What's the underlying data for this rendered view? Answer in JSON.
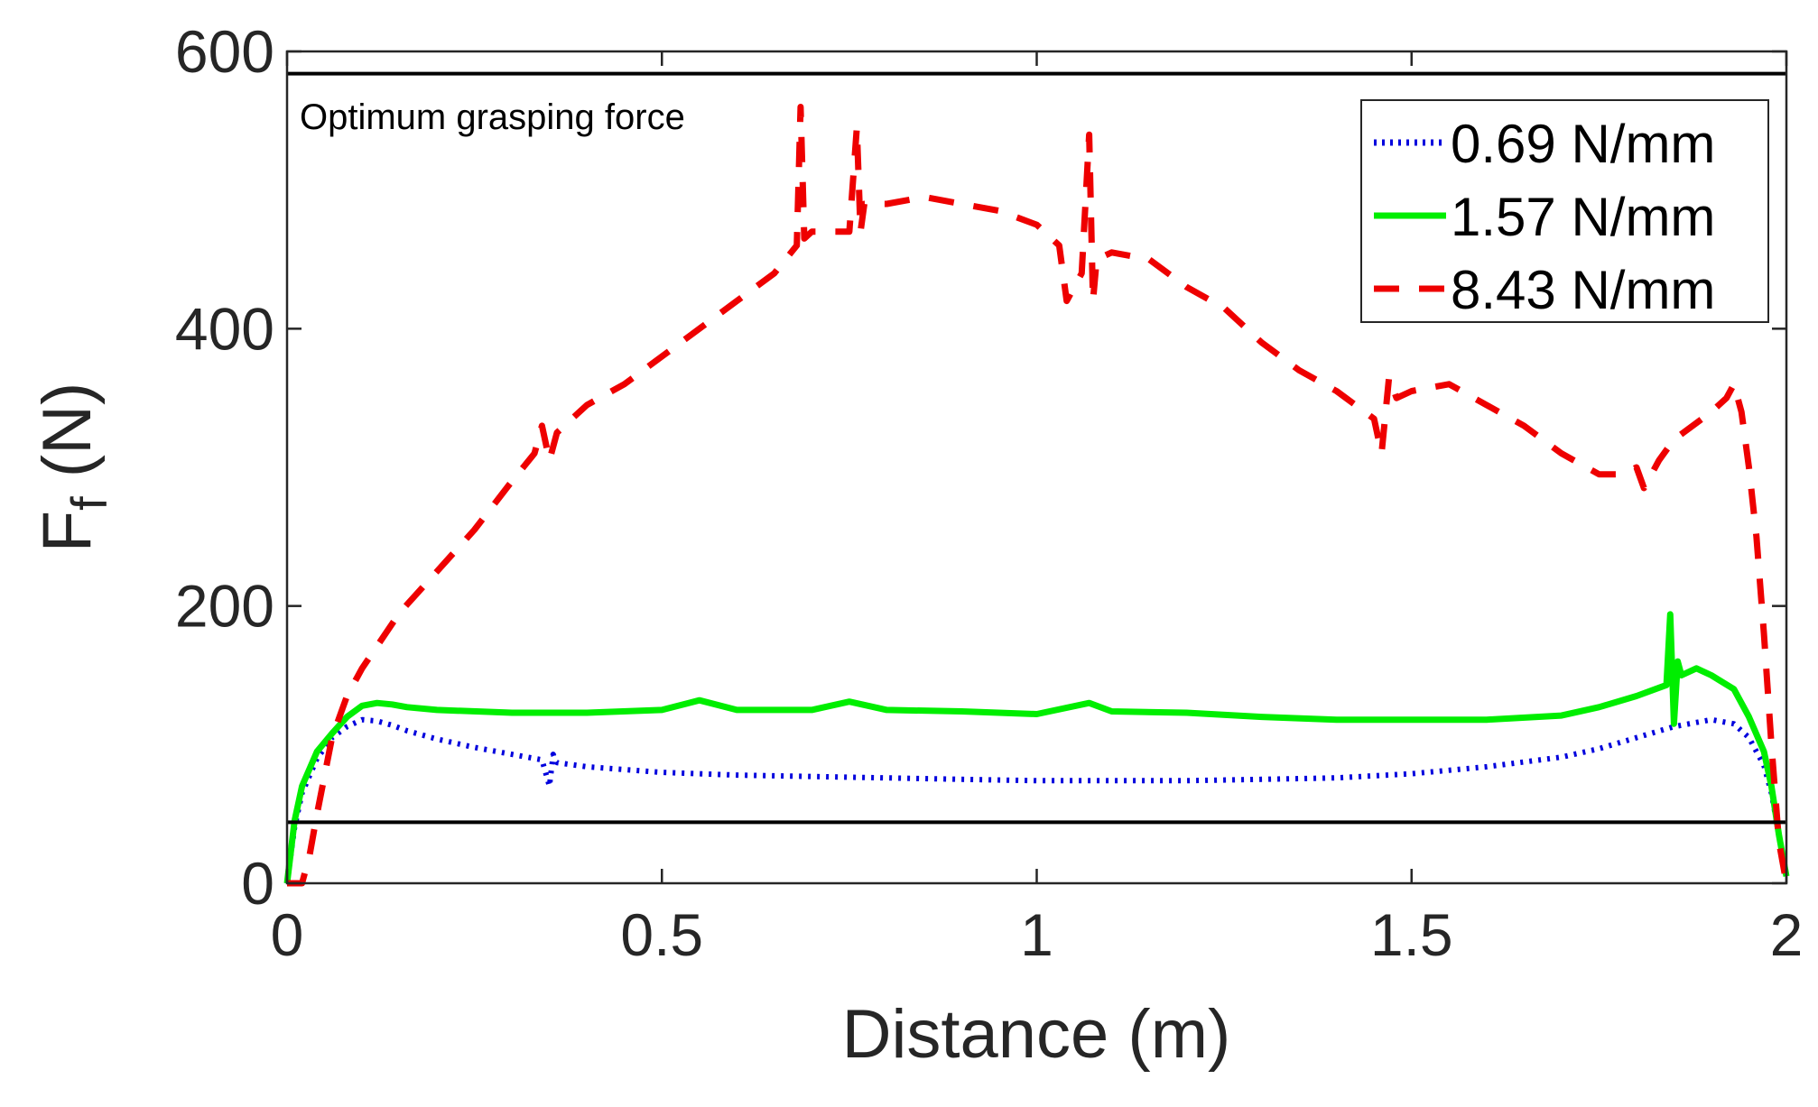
{
  "chart_data": {
    "type": "line",
    "title": "",
    "xlabel": "Distance (m)",
    "ylabel_main": "F",
    "ylabel_sub": "f",
    "ylabel_unit": "(N)",
    "xlim": [
      0,
      2
    ],
    "ylim": [
      0,
      600
    ],
    "grid": false,
    "legend_position": "top-right",
    "x_ticks": [
      {
        "value": 0,
        "label": "0"
      },
      {
        "value": 0.5,
        "label": "0.5"
      },
      {
        "value": 1,
        "label": "1"
      },
      {
        "value": 1.5,
        "label": "1.5"
      },
      {
        "value": 2,
        "label": "2"
      }
    ],
    "y_ticks": [
      {
        "value": 0,
        "label": "0"
      },
      {
        "value": 200,
        "label": "200"
      },
      {
        "value": 400,
        "label": "400"
      },
      {
        "value": 600,
        "label": "600"
      }
    ],
    "reference_lines": [
      {
        "name": "upper-limit",
        "y": 584,
        "color": "#000000"
      },
      {
        "name": "lower-limit",
        "y": 44,
        "color": "#000000"
      }
    ],
    "annotations": [
      {
        "text": "Optimum grasping force",
        "x": 0.02,
        "y": 553
      }
    ],
    "series": [
      {
        "name": "0.69 N/mm",
        "color": "#0000dd",
        "style": "dotted",
        "x": [
          0,
          0.01,
          0.02,
          0.04,
          0.06,
          0.08,
          0.1,
          0.12,
          0.14,
          0.16,
          0.2,
          0.25,
          0.3,
          0.34,
          0.35,
          0.355,
          0.36,
          0.4,
          0.45,
          0.5,
          0.6,
          0.7,
          0.8,
          0.9,
          1.0,
          1.1,
          1.2,
          1.3,
          1.4,
          1.5,
          1.6,
          1.7,
          1.75,
          1.8,
          1.85,
          1.9,
          1.93,
          1.95,
          1.97,
          1.98,
          1.99,
          2.0
        ],
        "y": [
          0,
          40,
          65,
          90,
          105,
          113,
          118,
          117,
          114,
          110,
          104,
          98,
          93,
          89,
          70,
          93,
          87,
          84,
          82,
          80,
          78,
          77,
          76,
          75,
          74,
          74,
          74,
          75,
          76,
          79,
          84,
          91,
          97,
          105,
          113,
          118,
          115,
          105,
          85,
          65,
          35,
          5
        ]
      },
      {
        "name": "1.57 N/mm",
        "color": "#00ee00",
        "style": "solid",
        "x": [
          0,
          0.01,
          0.02,
          0.04,
          0.06,
          0.08,
          0.1,
          0.12,
          0.14,
          0.16,
          0.2,
          0.3,
          0.4,
          0.5,
          0.55,
          0.6,
          0.7,
          0.75,
          0.8,
          0.9,
          1.0,
          1.07,
          1.1,
          1.2,
          1.3,
          1.4,
          1.5,
          1.6,
          1.7,
          1.75,
          1.8,
          1.84,
          1.845,
          1.85,
          1.855,
          1.86,
          1.88,
          1.9,
          1.93,
          1.95,
          1.97,
          1.98,
          1.99,
          2.0
        ],
        "y": [
          0,
          45,
          70,
          95,
          108,
          120,
          128,
          130,
          129,
          127,
          125,
          123,
          123,
          125,
          132,
          125,
          125,
          131,
          125,
          124,
          122,
          130,
          124,
          123,
          120,
          118,
          118,
          118,
          121,
          127,
          135,
          143,
          194,
          115,
          160,
          150,
          155,
          150,
          140,
          120,
          95,
          70,
          35,
          5
        ]
      },
      {
        "name": "8.43 N/mm",
        "color": "#ee0000",
        "style": "dashed",
        "x": [
          0,
          0.02,
          0.03,
          0.04,
          0.06,
          0.08,
          0.1,
          0.15,
          0.2,
          0.25,
          0.3,
          0.33,
          0.34,
          0.35,
          0.36,
          0.38,
          0.4,
          0.45,
          0.5,
          0.55,
          0.6,
          0.65,
          0.68,
          0.685,
          0.69,
          0.7,
          0.75,
          0.76,
          0.765,
          0.77,
          0.8,
          0.85,
          0.9,
          0.95,
          1.0,
          1.03,
          1.04,
          1.06,
          1.07,
          1.075,
          1.08,
          1.1,
          1.15,
          1.2,
          1.25,
          1.3,
          1.35,
          1.4,
          1.45,
          1.46,
          1.47,
          1.48,
          1.5,
          1.55,
          1.6,
          1.65,
          1.7,
          1.75,
          1.78,
          1.8,
          1.81,
          1.83,
          1.85,
          1.9,
          1.92,
          1.93,
          1.94,
          1.95,
          1.96,
          1.97,
          1.98,
          1.99,
          2.0
        ],
        "y": [
          0,
          0,
          20,
          50,
          105,
          135,
          155,
          195,
          225,
          255,
          290,
          310,
          330,
          305,
          325,
          335,
          345,
          360,
          380,
          400,
          420,
          440,
          460,
          560,
          465,
          470,
          470,
          545,
          470,
          490,
          490,
          495,
          490,
          485,
          475,
          460,
          420,
          440,
          540,
          420,
          450,
          455,
          450,
          430,
          415,
          390,
          370,
          355,
          335,
          310,
          365,
          350,
          355,
          360,
          345,
          330,
          310,
          295,
          295,
          300,
          285,
          305,
          320,
          340,
          350,
          360,
          340,
          300,
          250,
          180,
          100,
          30,
          0
        ]
      }
    ]
  }
}
